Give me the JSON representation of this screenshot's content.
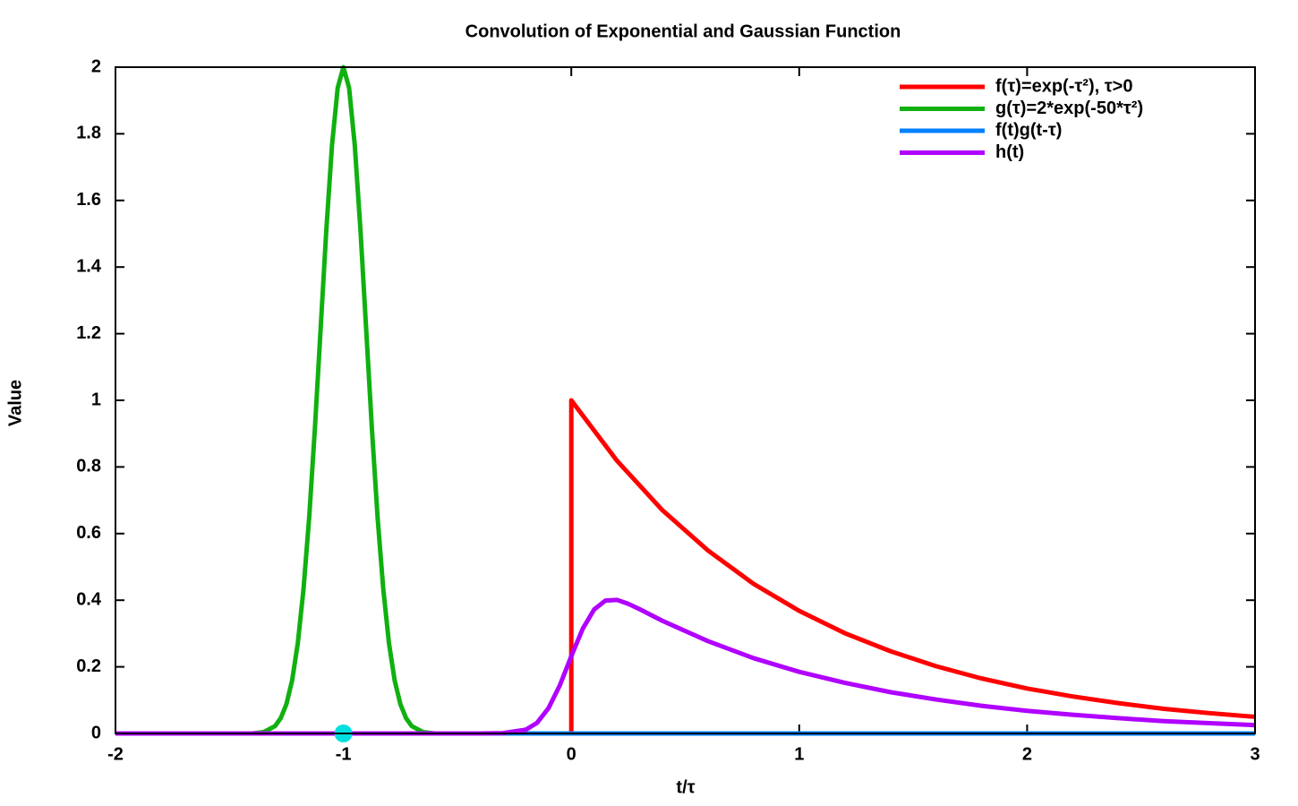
{
  "chart_data": {
    "type": "line",
    "title": "Convolution of Exponential and Gaussian Function",
    "xlabel": "t/τ",
    "ylabel": "Value",
    "xlim": [
      -2,
      3
    ],
    "ylim": [
      0,
      2
    ],
    "xticks": [
      -2,
      -1,
      0,
      1,
      2,
      3
    ],
    "yticks": [
      0,
      0.2,
      0.4,
      0.6,
      0.8,
      1,
      1.2,
      1.4,
      1.6,
      1.8,
      2
    ],
    "legend": "top-right",
    "series": [
      {
        "name": "f(τ)=exp(-τ²), τ>0",
        "color": "#ff0000",
        "x": [
          -2,
          0,
          0,
          0.2,
          0.4,
          0.6,
          0.8,
          1,
          1.2,
          1.4,
          1.6,
          1.8,
          2,
          2.2,
          2.4,
          2.6,
          2.8,
          3
        ],
        "values": [
          0,
          0,
          1,
          0.819,
          0.67,
          0.549,
          0.449,
          0.368,
          0.301,
          0.247,
          0.202,
          0.165,
          0.135,
          0.111,
          0.091,
          0.074,
          0.061,
          0.05
        ]
      },
      {
        "name": "g(τ)=2*exp(-50*τ²)",
        "color": "#10b010",
        "x": [
          -2,
          -1.4,
          -1.35,
          -1.3,
          -1.275,
          -1.25,
          -1.225,
          -1.2,
          -1.175,
          -1.15,
          -1.125,
          -1.1,
          -1.075,
          -1.05,
          -1.025,
          -1,
          -0.975,
          -0.95,
          -0.925,
          -0.9,
          -0.875,
          -0.85,
          -0.825,
          -0.8,
          -0.775,
          -0.75,
          -0.725,
          -0.7,
          -0.65,
          -0.6,
          3
        ],
        "values": [
          0,
          0,
          0.004,
          0.022,
          0.046,
          0.088,
          0.159,
          0.271,
          0.433,
          0.649,
          0.916,
          1.213,
          1.51,
          1.765,
          1.938,
          2,
          1.938,
          1.765,
          1.51,
          1.213,
          0.916,
          0.649,
          0.433,
          0.271,
          0.159,
          0.088,
          0.046,
          0.022,
          0.004,
          0,
          0
        ]
      },
      {
        "name": "f(t)g(t-τ)",
        "color": "#0080ff",
        "x": [
          -2,
          3
        ],
        "values": [
          0,
          0
        ]
      },
      {
        "name": "h(t)",
        "color": "#b000ff",
        "x": [
          -2,
          -0.4,
          -0.3,
          -0.2,
          -0.15,
          -0.1,
          -0.05,
          0,
          0.05,
          0.1,
          0.15,
          0.2,
          0.25,
          0.3,
          0.4,
          0.6,
          0.8,
          1,
          1.2,
          1.4,
          1.6,
          1.8,
          2,
          2.2,
          2.4,
          2.6,
          2.8,
          3
        ],
        "values": [
          0,
          0,
          0.001,
          0.011,
          0.032,
          0.076,
          0.145,
          0.232,
          0.314,
          0.372,
          0.399,
          0.401,
          0.389,
          0.373,
          0.338,
          0.277,
          0.226,
          0.185,
          0.152,
          0.124,
          0.102,
          0.083,
          0.068,
          0.056,
          0.046,
          0.037,
          0.031,
          0.025
        ]
      }
    ],
    "markers": [
      {
        "x": -1,
        "y": 0,
        "color": "#00e0e0"
      }
    ]
  }
}
